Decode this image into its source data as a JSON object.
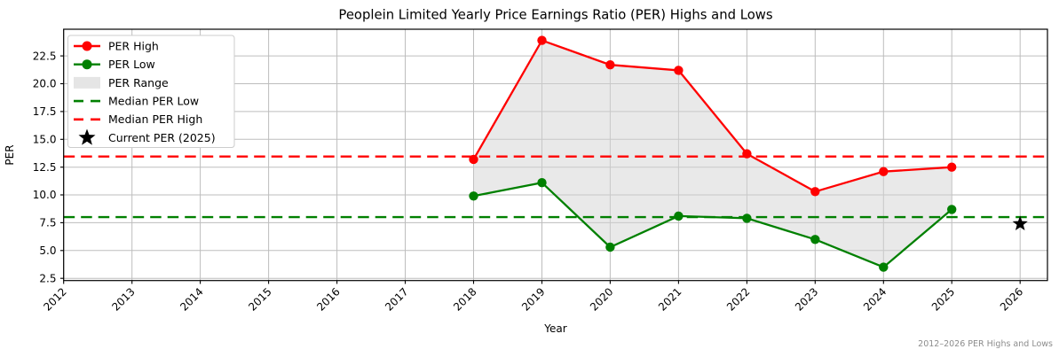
{
  "chart_data": {
    "type": "line",
    "title": "Peoplein Limited Yearly Price Earnings Ratio (PER) Highs and Lows",
    "xlabel": "Year",
    "ylabel": "PER",
    "footer": "2012–2026 PER Highs and Lows",
    "grid": true,
    "xlim": [
      2012,
      2026.4
    ],
    "ylim": [
      2.3,
      24.9
    ],
    "x_ticks": [
      2012,
      2013,
      2014,
      2015,
      2016,
      2017,
      2018,
      2019,
      2020,
      2021,
      2022,
      2023,
      2024,
      2025,
      2026
    ],
    "y_ticks": [
      2.5,
      5.0,
      7.5,
      10.0,
      12.5,
      15.0,
      17.5,
      20.0,
      22.5
    ],
    "y_tick_labels": [
      "2.5",
      "5.0",
      "7.5",
      "10.0",
      "12.5",
      "15.0",
      "17.5",
      "20.0",
      "22.5"
    ],
    "years": [
      2018,
      2019,
      2020,
      2021,
      2022,
      2023,
      2024,
      2025
    ],
    "series": [
      {
        "name": "PER High",
        "color": "#ff0000",
        "values": [
          13.2,
          23.9,
          21.7,
          21.2,
          13.7,
          10.3,
          12.1,
          12.5
        ]
      },
      {
        "name": "PER Low",
        "color": "#008000",
        "values": [
          9.9,
          11.1,
          5.3,
          8.1,
          7.9,
          6.0,
          3.5,
          8.7
        ]
      }
    ],
    "range_fill": {
      "name": "PER Range",
      "color": "#d3d3d3",
      "opacity": 0.5
    },
    "median_lines": [
      {
        "name": "Median PER Low",
        "color": "#008000",
        "value": 8.0
      },
      {
        "name": "Median PER High",
        "color": "#ff0000",
        "value": 13.45
      }
    ],
    "current_marker": {
      "name": "Current PER (2025)",
      "color": "#000000",
      "year": 2026,
      "value": 7.4
    },
    "legend": {
      "position": "upper left",
      "entries": [
        {
          "label": "PER High",
          "swatch": "line-marker",
          "color": "#ff0000"
        },
        {
          "label": "PER Low",
          "swatch": "line-marker",
          "color": "#008000"
        },
        {
          "label": "PER Range",
          "swatch": "patch",
          "color": "#e3e3e3"
        },
        {
          "label": "Median PER Low",
          "swatch": "dashed",
          "color": "#008000"
        },
        {
          "label": "Median PER High",
          "swatch": "dashed",
          "color": "#ff0000"
        },
        {
          "label": "Current PER (2025)",
          "swatch": "star",
          "color": "#000000"
        }
      ]
    },
    "colors": {
      "grid": "#bdbdbd",
      "spine": "#000000",
      "footer_text": "#8c8c8c",
      "legend_edge": "#cccccc"
    }
  }
}
